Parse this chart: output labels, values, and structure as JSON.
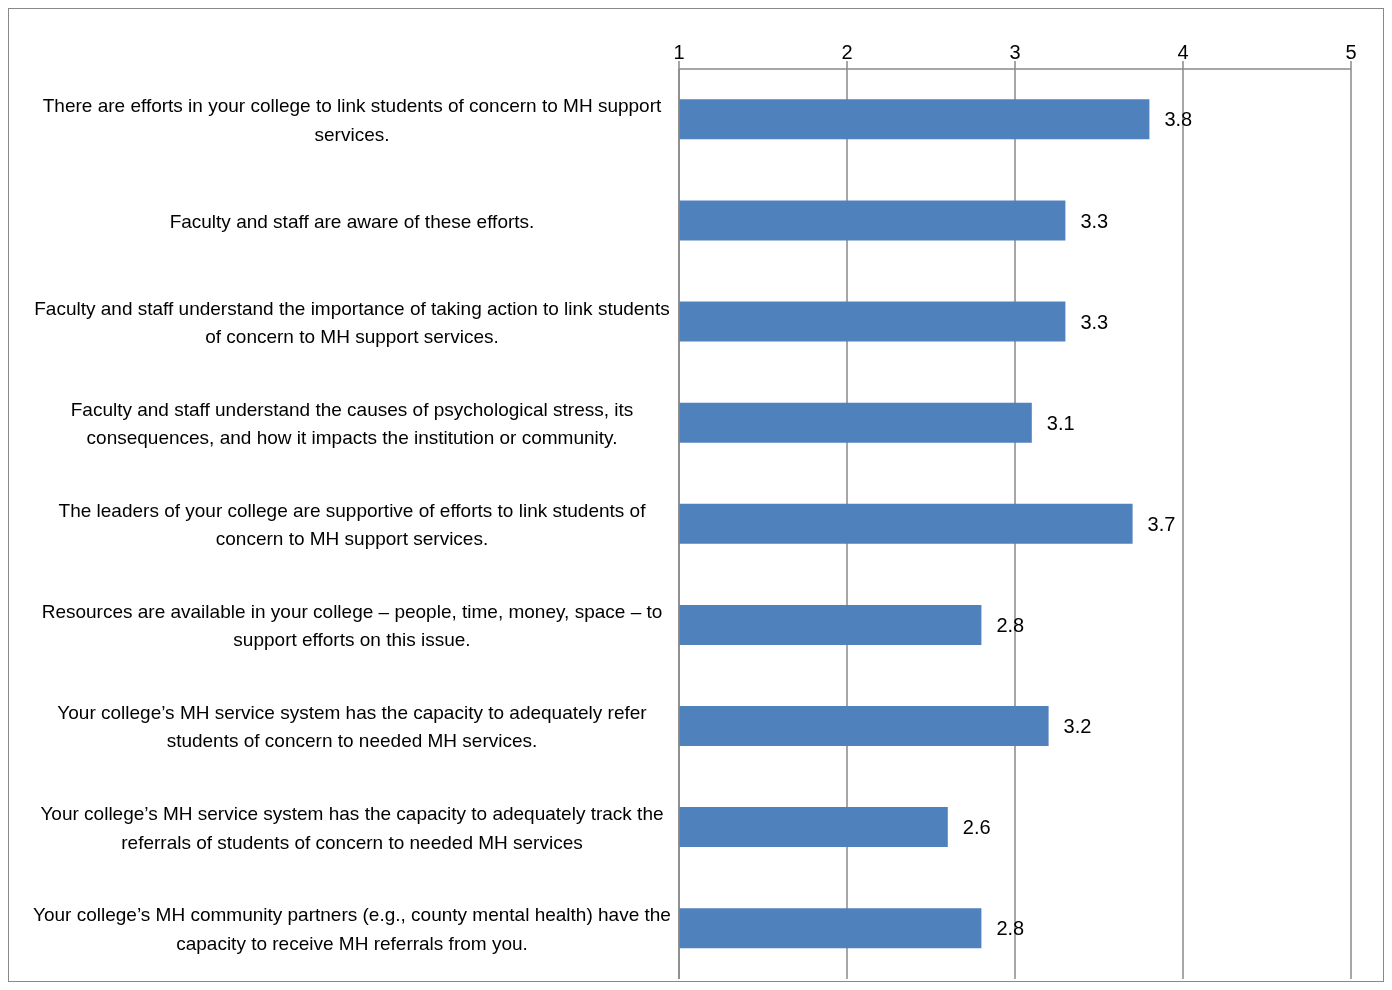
{
  "chart_data": {
    "type": "bar",
    "orientation": "horizontal",
    "categories": [
      "There are efforts in your college to link students of concern to MH support services.",
      "Faculty and staff are aware of these efforts.",
      "Faculty and staff understand the importance of taking action to link students of concern to MH support services.",
      "Faculty and staff understand the causes of psychological stress, its consequences, and how it impacts the institution or community.",
      "The leaders of your college are supportive of efforts to link students of concern to MH support services.",
      "Resources are available in your college – people, time, money, space – to support efforts on this issue.",
      "Your college’s MH service system has the capacity to adequately refer students of concern to needed MH services.",
      "Your college’s MH service system has the capacity to adequately track the referrals of students of concern to needed MH services",
      "Your college’s MH community partners (e.g., county mental health) have the capacity to receive MH referrals from you."
    ],
    "values": [
      3.8,
      3.3,
      3.3,
      3.1,
      3.7,
      2.8,
      3.2,
      2.6,
      2.8
    ],
    "color": "#4f81bd",
    "xlim": [
      1,
      5
    ],
    "xticks": [
      1,
      2,
      3,
      4,
      5
    ],
    "grid": "x",
    "data_labels": true,
    "legend": false
  }
}
